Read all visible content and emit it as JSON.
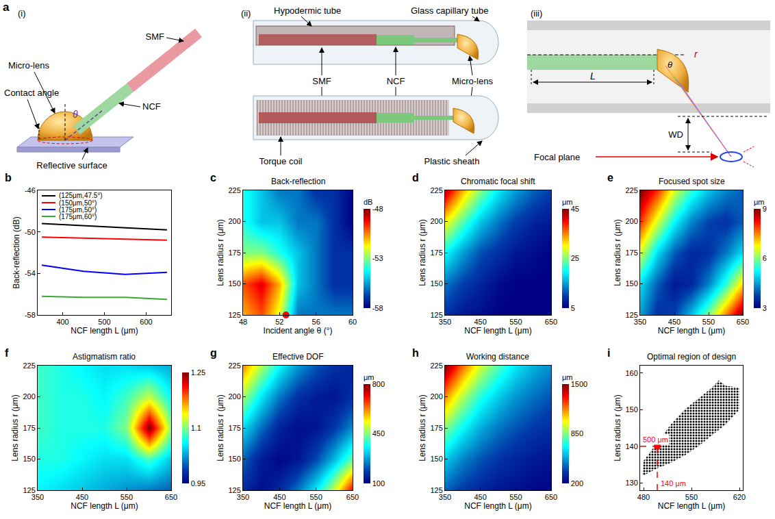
{
  "diagram": {
    "letter": "a",
    "panels": [
      {
        "label": "(i)",
        "smf": "SMF",
        "lens": "Micro-lens",
        "ncf": "NCF",
        "contact": "Contact angle",
        "surface": "Reflective surface",
        "angle": "θ"
      },
      {
        "label": "(ii)",
        "hypo": "Hypodermic tube",
        "glass": "Glass capillary tube",
        "smf": "SMF",
        "ncf": "NCF",
        "lens": "Micro-lens",
        "coil": "Torque coil",
        "sheath": "Plastic sheath"
      },
      {
        "label": "(iii)",
        "length": "L",
        "radius": "r",
        "angle": "θ",
        "wd": "WD",
        "focal": "Focal plane"
      }
    ]
  },
  "chart_data": [
    {
      "label": "b",
      "type": "line",
      "x_label": "NCF length L (μm)",
      "y_label": "Back-reflection (dB)",
      "x": [
        350,
        450,
        550,
        650
      ],
      "series": [
        {
          "name": "(125μm,47.5°)",
          "color": "#000000",
          "values": [
            -49.2,
            -49.4,
            -49.6,
            -49.8
          ]
        },
        {
          "name": "(150μm,50°)",
          "color": "#ff0000",
          "values": [
            -50.5,
            -50.6,
            -50.7,
            -50.8
          ]
        },
        {
          "name": "(175μm,50°)",
          "color": "#0000ff",
          "values": [
            -53.2,
            -53.8,
            -54.1,
            -53.9
          ]
        },
        {
          "name": "(175μm,60°)",
          "color": "#33aa33",
          "values": [
            -56.2,
            -56.3,
            -56.3,
            -56.5
          ]
        }
      ],
      "xlim": [
        340,
        660
      ],
      "xticks": [
        400,
        500,
        600
      ],
      "ylim": [
        -58,
        -46
      ],
      "yticks": [
        -58,
        -54,
        -50,
        -46
      ],
      "legend": "top left"
    },
    {
      "label": "c",
      "type": "heatmap",
      "title": "Back-reflection",
      "x_label": "Incident angle θ (°)",
      "y_label": "Lens radius r (μm)",
      "x": [
        48,
        50,
        52,
        54,
        56,
        58,
        60
      ],
      "y": [
        125,
        150,
        175,
        200,
        225
      ],
      "z": [
        [
          -51,
          -50,
          -52,
          -56,
          -56,
          -56,
          -56
        ],
        [
          -50,
          -49,
          -51,
          -55,
          -56,
          -57,
          -57
        ],
        [
          -53,
          -53,
          -54,
          -55,
          -56,
          -57,
          -57
        ],
        [
          -54,
          -55,
          -55,
          -56,
          -56,
          -57,
          -58
        ],
        [
          -54,
          -55,
          -56,
          -56,
          -57,
          -57,
          -58
        ]
      ],
      "xlim": [
        48,
        60
      ],
      "xticks": [
        48,
        52,
        56,
        60
      ],
      "ylim": [
        125,
        225
      ],
      "yticks": [
        125,
        150,
        175,
        200,
        225
      ],
      "colorbar": {
        "title": "dB",
        "range": [
          -58,
          -48
        ],
        "ticks": [
          -58,
          -53,
          -48
        ]
      },
      "point": {
        "x": 52.7,
        "y": 125,
        "color": "#ff0000"
      }
    },
    {
      "label": "d",
      "type": "heatmap",
      "title": "Chromatic focal shift",
      "x_label": "NCF length L (μm)",
      "y_label": "Lens radius r (μm)",
      "x": [
        350,
        400,
        450,
        500,
        550,
        600,
        650
      ],
      "y": [
        125,
        150,
        175,
        200,
        225
      ],
      "z": [
        [
          9,
          7,
          6,
          5,
          5,
          5,
          5
        ],
        [
          13,
          10,
          8,
          6,
          5,
          5,
          5
        ],
        [
          20,
          15,
          11,
          9,
          7,
          6,
          5
        ],
        [
          30,
          23,
          17,
          13,
          10,
          8,
          7
        ],
        [
          43,
          33,
          25,
          19,
          15,
          12,
          10
        ]
      ],
      "xlim": [
        350,
        650
      ],
      "xticks": [
        350,
        450,
        550,
        650
      ],
      "ylim": [
        125,
        225
      ],
      "yticks": [
        125,
        150,
        175,
        200,
        225
      ],
      "colorbar": {
        "title": "μm",
        "range": [
          5,
          45
        ],
        "ticks": [
          5,
          25,
          45
        ]
      }
    },
    {
      "label": "e",
      "type": "heatmap",
      "title": "Focused spot size",
      "x_label": "NCF length L (μm)",
      "y_label": "Lens radius r (μm)",
      "x": [
        350,
        400,
        450,
        500,
        550,
        600,
        650
      ],
      "y": [
        125,
        150,
        175,
        200,
        225
      ],
      "z": [
        [
          4.5,
          3.6,
          3.8,
          4.8,
          6,
          7.5,
          9
        ],
        [
          5,
          4,
          3.3,
          3.5,
          4.3,
          5.5,
          7
        ],
        [
          6.5,
          5,
          4,
          3.5,
          3.6,
          4.2,
          5
        ],
        [
          8,
          6.5,
          5.2,
          4.3,
          3.8,
          3.6,
          4
        ],
        [
          9,
          8,
          6.5,
          5.5,
          4.8,
          4.3,
          4
        ]
      ],
      "xlim": [
        350,
        650
      ],
      "xticks": [
        350,
        450,
        550,
        650
      ],
      "ylim": [
        125,
        225
      ],
      "yticks": [
        125,
        150,
        175,
        200,
        225
      ],
      "colorbar": {
        "title": "μm",
        "range": [
          3,
          9
        ],
        "ticks": [
          3,
          6,
          9
        ]
      }
    },
    {
      "label": "f",
      "type": "heatmap",
      "title": "Astigmatism ratio",
      "x_label": "NCF length L (μm)",
      "y_label": "Lens radius r (μm)",
      "x": [
        350,
        400,
        450,
        500,
        550,
        600,
        650
      ],
      "y": [
        125,
        150,
        175,
        200,
        225
      ],
      "z": [
        [
          1.06,
          1.05,
          1.04,
          1.03,
          1.02,
          1.01,
          1.0
        ],
        [
          1.07,
          1.07,
          1.06,
          1.05,
          1.05,
          1.08,
          1.04
        ],
        [
          1.08,
          1.07,
          1.07,
          1.07,
          1.1,
          1.25,
          1.1
        ],
        [
          1.08,
          1.07,
          1.07,
          1.06,
          1.08,
          1.12,
          1.06
        ],
        [
          1.08,
          1.07,
          1.06,
          1.05,
          1.05,
          1.04,
          1.03
        ]
      ],
      "xlim": [
        350,
        650
      ],
      "xticks": [
        350,
        450,
        550,
        650
      ],
      "ylim": [
        125,
        225
      ],
      "yticks": [
        125,
        150,
        175,
        200,
        225
      ],
      "colorbar": {
        "range": [
          0.95,
          1.25
        ],
        "ticks": [
          0.95,
          1.1,
          1.25
        ]
      }
    },
    {
      "label": "g",
      "type": "heatmap",
      "title": "Effective DOF",
      "x_label": "NCF length L (μm)",
      "y_label": "Lens radius r (μm)",
      "x": [
        350,
        400,
        450,
        500,
        550,
        600,
        650
      ],
      "y": [
        125,
        150,
        175,
        200,
        225
      ],
      "z": [
        [
          160,
          120,
          160,
          240,
          350,
          500,
          720
        ],
        [
          220,
          140,
          110,
          130,
          200,
          300,
          430
        ],
        [
          330,
          230,
          150,
          120,
          130,
          180,
          260
        ],
        [
          470,
          340,
          240,
          170,
          140,
          130,
          170
        ],
        [
          620,
          480,
          360,
          270,
          210,
          170,
          150
        ]
      ],
      "xlim": [
        350,
        650
      ],
      "xticks": [
        350,
        450,
        550,
        650
      ],
      "ylim": [
        125,
        225
      ],
      "yticks": [
        125,
        150,
        175,
        200,
        225
      ],
      "colorbar": {
        "title": "μm",
        "range": [
          100,
          800
        ],
        "ticks": [
          100,
          450,
          800
        ]
      }
    },
    {
      "label": "h",
      "type": "heatmap",
      "title": "Working distance",
      "x_label": "NCF length L (μm)",
      "y_label": "Lens radius r (μm)",
      "x": [
        350,
        400,
        450,
        500,
        550,
        600,
        650
      ],
      "y": [
        125,
        150,
        175,
        200,
        225
      ],
      "z": [
        [
          420,
          350,
          300,
          260,
          240,
          220,
          210
        ],
        [
          600,
          480,
          400,
          340,
          300,
          270,
          250
        ],
        [
          850,
          680,
          550,
          460,
          400,
          350,
          320
        ],
        [
          1150,
          900,
          720,
          600,
          510,
          450,
          400
        ],
        [
          1500,
          1200,
          950,
          780,
          650,
          560,
          500
        ]
      ],
      "xlim": [
        350,
        650
      ],
      "xticks": [
        350,
        450,
        550,
        650
      ],
      "ylim": [
        125,
        225
      ],
      "yticks": [
        125,
        150,
        175,
        200,
        225
      ],
      "colorbar": {
        "title": "μm",
        "range": [
          200,
          1500
        ],
        "ticks": [
          200,
          850,
          1500
        ]
      }
    },
    {
      "label": "i",
      "type": "area",
      "title": "Optimal region of design",
      "x_label": "NCF length L (μm)",
      "y_label": "Lens radius r (μm)",
      "region": {
        "x": [
          478,
          480,
          500,
          520,
          540,
          560,
          580,
          590,
          600,
          620,
          620,
          600,
          580,
          560,
          540,
          520,
          500,
          480,
          478
        ],
        "y": [
          132,
          136,
          141,
          146,
          150,
          153,
          156,
          158,
          156.5,
          156,
          150,
          146,
          143,
          140,
          137.5,
          135.5,
          134,
          132,
          132
        ]
      },
      "marker": "dots",
      "color": "#000000",
      "point": {
        "x": 500,
        "y": 140,
        "color": "#ff0000"
      },
      "point_labels": {
        "x": "500 μm",
        "y": "140 μm"
      },
      "xlim": [
        475,
        625
      ],
      "xticks": [
        480,
        550,
        620
      ],
      "ylim": [
        128,
        162
      ],
      "yticks": [
        130,
        140,
        150,
        160
      ]
    }
  ]
}
